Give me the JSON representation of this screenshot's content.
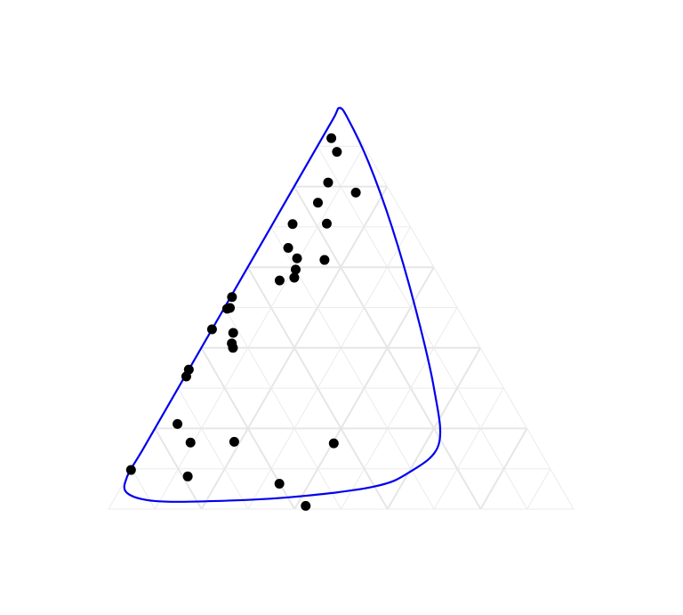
{
  "chart_data": {
    "type": "scatter",
    "subtype": "ternary",
    "title": "",
    "axes": [
      "",
      "",
      ""
    ],
    "grid": true,
    "grid_step": 0.1,
    "points": [
      {
        "top": 0.92,
        "right": 0.02,
        "left": 0.06
      },
      {
        "top": 0.886,
        "right": 0.049,
        "left": 0.065
      },
      {
        "top": 0.81,
        "right": 0.068,
        "left": 0.122
      },
      {
        "top": 0.785,
        "right": 0.14,
        "left": 0.075
      },
      {
        "top": 0.76,
        "right": 0.071,
        "left": 0.169
      },
      {
        "top": 0.708,
        "right": 0.116,
        "left": 0.176
      },
      {
        "top": 0.707,
        "right": 0.043,
        "left": 0.25
      },
      {
        "top": 0.648,
        "right": 0.063,
        "left": 0.289
      },
      {
        "top": 0.622,
        "right": 0.095,
        "left": 0.283
      },
      {
        "top": 0.618,
        "right": 0.156,
        "left": 0.226
      },
      {
        "top": 0.594,
        "right": 0.106,
        "left": 0.3
      },
      {
        "top": 0.574,
        "right": 0.113,
        "left": 0.313
      },
      {
        "top": 0.567,
        "right": 0.085,
        "left": 0.348
      },
      {
        "top": 0.526,
        "right": 0.003,
        "left": 0.471
      },
      {
        "top": 0.499,
        "right": 0.012,
        "left": 0.489
      },
      {
        "top": 0.497,
        "right": 0.007,
        "left": 0.496
      },
      {
        "top": 0.446,
        "right": 0.0,
        "left": 0.554
      },
      {
        "top": 0.437,
        "right": 0.05,
        "left": 0.513
      },
      {
        "top": 0.411,
        "right": 0.06,
        "left": 0.529
      },
      {
        "top": 0.4,
        "right": 0.068,
        "left": 0.532
      },
      {
        "top": 0.346,
        "right": 0.0,
        "left": 0.654
      },
      {
        "top": 0.329,
        "right": 0.003,
        "left": 0.668
      },
      {
        "top": 0.211,
        "right": 0.043,
        "left": 0.746
      },
      {
        "top": 0.165,
        "right": 0.094,
        "left": 0.741
      },
      {
        "top": 0.167,
        "right": 0.187,
        "left": 0.646
      },
      {
        "top": 0.163,
        "right": 0.403,
        "left": 0.434
      },
      {
        "top": 0.097,
        "right": 0.0,
        "left": 0.903
      },
      {
        "top": 0.081,
        "right": 0.13,
        "left": 0.789
      },
      {
        "top": 0.063,
        "right": 0.336,
        "left": 0.601
      },
      {
        "top": 0.008,
        "right": 0.42,
        "left": 0.572
      }
    ],
    "contour": [
      {
        "top": 0.995,
        "right": 0.0,
        "left": 0.005
      },
      {
        "top": 0.97,
        "right": 0.03,
        "left": 0.0
      },
      {
        "top": 0.86,
        "right": 0.13,
        "left": 0.01
      },
      {
        "top": 0.7,
        "right": 0.26,
        "left": 0.04
      },
      {
        "top": 0.5,
        "right": 0.41,
        "left": 0.09
      },
      {
        "top": 0.3,
        "right": 0.55,
        "left": 0.15
      },
      {
        "top": 0.16,
        "right": 0.63,
        "left": 0.21
      },
      {
        "top": 0.09,
        "right": 0.6,
        "left": 0.31
      },
      {
        "top": 0.055,
        "right": 0.54,
        "left": 0.405
      },
      {
        "top": 0.03,
        "right": 0.38,
        "left": 0.59
      },
      {
        "top": 0.02,
        "right": 0.22,
        "left": 0.76
      },
      {
        "top": 0.02,
        "right": 0.09,
        "left": 0.89
      },
      {
        "top": 0.04,
        "right": 0.02,
        "left": 0.94
      },
      {
        "top": 0.08,
        "right": 0.0,
        "left": 0.92
      },
      {
        "top": 0.15,
        "right": 0.0,
        "left": 0.85
      },
      {
        "top": 0.3,
        "right": 0.0,
        "left": 0.7
      },
      {
        "top": 0.5,
        "right": 0.0,
        "left": 0.5
      },
      {
        "top": 0.7,
        "right": 0.0,
        "left": 0.3
      },
      {
        "top": 0.88,
        "right": 0.0,
        "left": 0.12
      },
      {
        "top": 0.97,
        "right": 0.0,
        "left": 0.03
      }
    ],
    "colors": {
      "points": "#000000",
      "contour": "#0000ee",
      "grid": "#ebebeb",
      "background": "#ffffff"
    }
  }
}
